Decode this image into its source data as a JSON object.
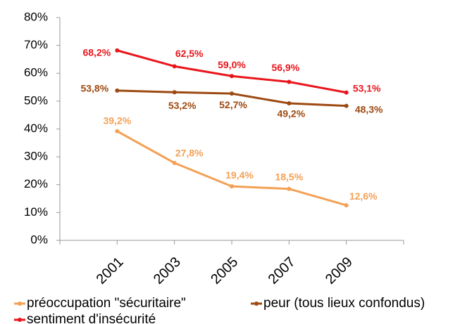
{
  "chart_data": {
    "type": "line",
    "categories": [
      "2001",
      "2003",
      "2005",
      "2007",
      "2009"
    ],
    "series": [
      {
        "name": "préoccupation \"sécuritaire\"",
        "color": "#f4a055",
        "values": [
          39.2,
          27.8,
          19.4,
          18.5,
          12.6
        ],
        "value_labels": [
          "39,2%",
          "27,8%",
          "19,4%",
          "18,5%",
          "12,6%"
        ]
      },
      {
        "name": "peur (tous lieux confondus)",
        "color": "#9c4a12",
        "values": [
          53.8,
          53.2,
          52.7,
          49.2,
          48.3
        ],
        "value_labels": [
          "53,8%",
          "53,2%",
          "52,7%",
          "49,2%",
          "48,3%"
        ]
      },
      {
        "name": "sentiment d'insécurité",
        "color": "#e8161c",
        "values": [
          68.2,
          62.5,
          59.0,
          56.9,
          53.1
        ],
        "value_labels": [
          "68,2%",
          "62,5%",
          "59,0%",
          "56,9%",
          "53,1%"
        ]
      }
    ],
    "ylim": [
      0,
      80
    ],
    "yticks": [
      {
        "value": 0,
        "label": "0%"
      },
      {
        "value": 10,
        "label": "10%"
      },
      {
        "value": 20,
        "label": "20%"
      },
      {
        "value": 30,
        "label": "30%"
      },
      {
        "value": 40,
        "label": "40%"
      },
      {
        "value": 50,
        "label": "50%"
      },
      {
        "value": 60,
        "label": "60%"
      },
      {
        "value": 70,
        "label": "70%"
      },
      {
        "value": 80,
        "label": "80%"
      }
    ]
  }
}
